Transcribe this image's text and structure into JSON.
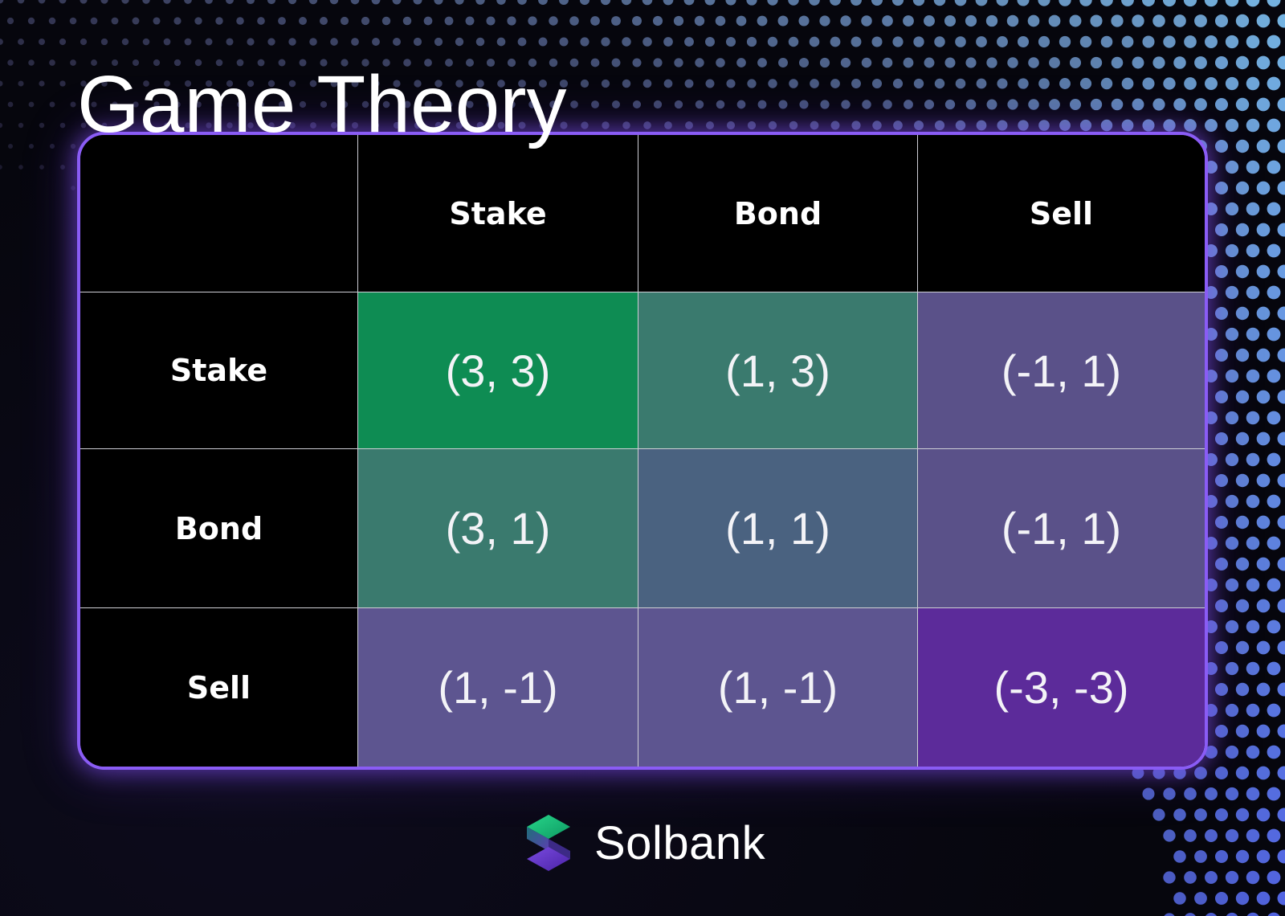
{
  "title": "Game Theory",
  "matrix": {
    "corner": "",
    "columns": [
      "Stake",
      "Bond",
      "Sell"
    ],
    "rows": [
      {
        "label": "Stake",
        "cells": [
          {
            "text": "(3, 3)",
            "color": "#0e8c53"
          },
          {
            "text": "(1, 3)",
            "color": "#3a7a6e"
          },
          {
            "text": "(-1, 1)",
            "color": "#5a5189"
          }
        ]
      },
      {
        "label": "Bond",
        "cells": [
          {
            "text": "(3, 1)",
            "color": "#3a7a6e"
          },
          {
            "text": "(1, 1)",
            "color": "#4a6280"
          },
          {
            "text": "(-1, 1)",
            "color": "#5a5189"
          }
        ]
      },
      {
        "label": "Sell",
        "cells": [
          {
            "text": "(1, -1)",
            "color": "#5d5590"
          },
          {
            "text": "(1, -1)",
            "color": "#5d5590"
          },
          {
            "text": "(-3, -3)",
            "color": "#5c2b9a"
          }
        ]
      }
    ]
  },
  "colors": {
    "border": "#8a5cf5",
    "header_bg": "#000000",
    "grid_line": "#cfcfd6",
    "background": "#06060d"
  },
  "brand": {
    "name": "Solbank",
    "logo_icon": "solbank-s-logo-icon"
  }
}
